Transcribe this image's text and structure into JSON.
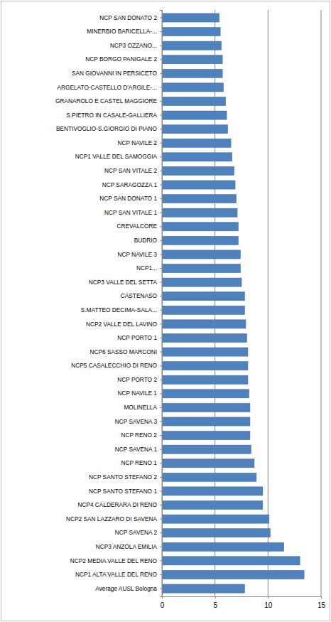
{
  "chart_data": {
    "type": "bar",
    "orientation": "horizontal",
    "color": "#4f81bd",
    "grid": true,
    "categories": [
      "NCP SAN DONATO 2",
      "MINERBIO BARICELLA-...",
      "NCP3 OZZANO...",
      "NCP BORGO PANIGALE 2",
      "SAN GIOVANNI IN PERSICETO",
      "ARGELATO-CASTELLO D'ARGILE-...",
      "GRANAROLO E CASTEL MAGGIORE",
      "S.PIETRO IN CASALE-GALLIERA",
      "BENTIVOGLIO-S.GIORGIO DI PIANO",
      "NCP NAVILE 2",
      "NCP1 VALLE DEL SAMOGGIA",
      "NCP SAN VITALE 2",
      "NCP SARAGOZZA 1",
      "NCP SAN DONATO 1",
      "NCP SAN VITALE 1",
      "CREVALCORE",
      "BUDRIO",
      "NCP NAVILE 3",
      "NCP1...",
      "NCP3 VALLE DEL SETTA",
      "CASTENASO",
      "S.MATTEO DECIMA-SALA...",
      "NCP2 VALLE DEL LAVINO",
      "NCP PORTO 1",
      "NCP6 SASSO MARCONI",
      "NCP5 CASALECCHIO DI RENO",
      "NCP PORTO 2",
      "NCP NAVILE 1",
      "MOLINELLA",
      "NCP SAVENA 3",
      "NCP RENO 2",
      "NCP SAVENA 1",
      "NCP RENO 1",
      "NCP SANTO STEFANO 2",
      "NCP SANTO STEFANO 1",
      "NCP4 CALDERARA DI RENO",
      "NCP2 SAN LAZZARO DI SAVENA",
      "NCP SAVENA 2",
      "NCP3 ANZOLA EMILIA",
      "NCP2 MEDIA VALLE DEL RENO",
      "NCP1 ALTA VALLE DEL RENO",
      "Average AUSL Bologna"
    ],
    "values": [
      5.4,
      5.5,
      5.6,
      5.7,
      5.7,
      5.8,
      6.0,
      6.1,
      6.2,
      6.5,
      6.6,
      6.8,
      6.9,
      7.0,
      7.1,
      7.2,
      7.2,
      7.4,
      7.4,
      7.5,
      7.8,
      7.8,
      7.9,
      8.0,
      8.1,
      8.1,
      8.1,
      8.2,
      8.3,
      8.3,
      8.3,
      8.4,
      8.7,
      8.9,
      9.5,
      9.5,
      10.1,
      10.2,
      11.5,
      13.0,
      13.4,
      7.8
    ],
    "xlim": [
      0,
      15
    ],
    "xticks": [
      0,
      5,
      10,
      15
    ]
  }
}
